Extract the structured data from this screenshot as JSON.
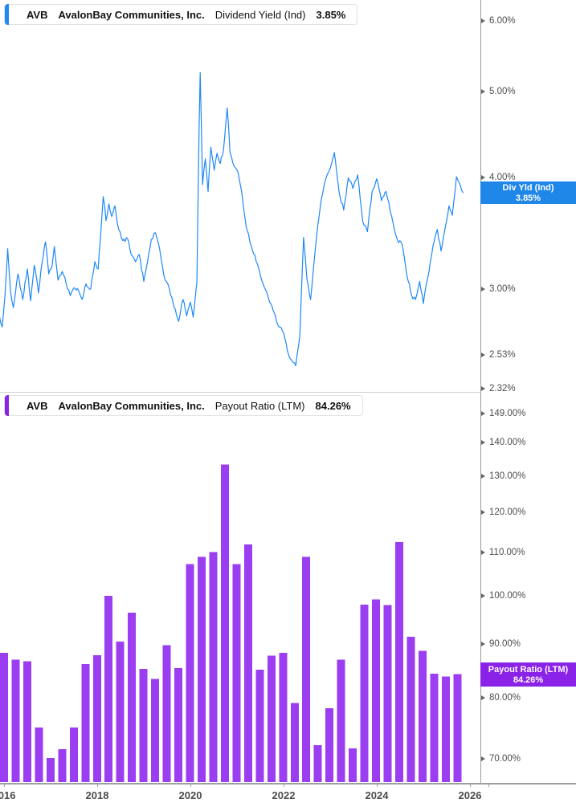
{
  "colors": {
    "line": "#1e88f7",
    "line_chip": "#1f87e8",
    "bar": "#9b3df0",
    "bar_chip": "#8b22e8",
    "accent_top": "#1e88f7",
    "accent_bottom": "#8b22e8"
  },
  "top_chart": {
    "header": {
      "ticker": "AVB",
      "company": "AvalonBay Communities, Inc.",
      "metric": "Dividend Yield (Ind)",
      "value": "3.85%"
    },
    "y_tick_labels": [
      "6.00%",
      "5.00%",
      "4.00%",
      "3.00%",
      "2.53%",
      "2.32%"
    ],
    "chip": {
      "title": "Div Yld (Ind)",
      "value": "3.85%"
    }
  },
  "bottom_chart": {
    "header": {
      "ticker": "AVB",
      "company": "AvalonBay Communities, Inc.",
      "metric": "Payout Ratio (LTM)",
      "value": "84.26%"
    },
    "y_tick_labels": [
      "149.00%",
      "140.00%",
      "130.00%",
      "120.00%",
      "110.00%",
      "100.00%",
      "90.00%",
      "80.00%",
      "70.00%"
    ],
    "chip": {
      "title": "Payout Ratio (LTM)",
      "value": "84.26%"
    }
  },
  "x_axis": {
    "labels": [
      "2016",
      "2018",
      "2020",
      "2022",
      "2024",
      "2026"
    ]
  },
  "chart_data": [
    {
      "type": "line",
      "title": "AVB AvalonBay Communities, Inc. — Dividend Yield (Ind)",
      "legend": "Div Yld (Ind)",
      "unit": "%",
      "y_scale": "log",
      "ylim": [
        2.25,
        6.3
      ],
      "y_ticks": [
        6.0,
        5.0,
        4.0,
        3.0,
        2.53,
        2.32
      ],
      "x_ticks": [
        2016,
        2018,
        2020,
        2022,
        2024,
        2026
      ],
      "last_value": 3.85,
      "series": [
        {
          "name": "Div Yld (Ind)",
          "points": [
            [
              2015.9,
              2.8
            ],
            [
              2015.96,
              2.72
            ],
            [
              2016.02,
              2.95
            ],
            [
              2016.08,
              3.33
            ],
            [
              2016.14,
              2.98
            ],
            [
              2016.2,
              2.86
            ],
            [
              2016.3,
              3.12
            ],
            [
              2016.4,
              2.92
            ],
            [
              2016.5,
              3.16
            ],
            [
              2016.57,
              2.91
            ],
            [
              2016.65,
              3.19
            ],
            [
              2016.74,
              2.97
            ],
            [
              2016.82,
              3.22
            ],
            [
              2016.89,
              3.39
            ],
            [
              2016.96,
              3.12
            ],
            [
              2017.03,
              3.18
            ],
            [
              2017.08,
              3.35
            ],
            [
              2017.16,
              3.07
            ],
            [
              2017.25,
              3.14
            ],
            [
              2017.33,
              3.05
            ],
            [
              2017.42,
              2.95
            ],
            [
              2017.5,
              3.01
            ],
            [
              2017.6,
              2.99
            ],
            [
              2017.68,
              2.92
            ],
            [
              2017.76,
              3.04
            ],
            [
              2017.86,
              3.0
            ],
            [
              2017.95,
              3.22
            ],
            [
              2018.02,
              3.16
            ],
            [
              2018.09,
              3.55
            ],
            [
              2018.13,
              3.81
            ],
            [
              2018.19,
              3.58
            ],
            [
              2018.25,
              3.74
            ],
            [
              2018.31,
              3.62
            ],
            [
              2018.38,
              3.72
            ],
            [
              2018.46,
              3.5
            ],
            [
              2018.55,
              3.4
            ],
            [
              2018.65,
              3.42
            ],
            [
              2018.73,
              3.28
            ],
            [
              2018.82,
              3.22
            ],
            [
              2018.9,
              3.28
            ],
            [
              2019.0,
              3.06
            ],
            [
              2019.08,
              3.22
            ],
            [
              2019.16,
              3.41
            ],
            [
              2019.25,
              3.47
            ],
            [
              2019.34,
              3.33
            ],
            [
              2019.43,
              3.11
            ],
            [
              2019.55,
              3.0
            ],
            [
              2019.65,
              2.86
            ],
            [
              2019.75,
              2.76
            ],
            [
              2019.84,
              2.92
            ],
            [
              2019.92,
              2.8
            ],
            [
              2020.0,
              2.9
            ],
            [
              2020.06,
              2.79
            ],
            [
              2020.14,
              3.05
            ],
            [
              2020.21,
              5.25
            ],
            [
              2020.26,
              3.93
            ],
            [
              2020.32,
              4.2
            ],
            [
              2020.38,
              3.86
            ],
            [
              2020.44,
              4.33
            ],
            [
              2020.51,
              4.08
            ],
            [
              2020.57,
              4.26
            ],
            [
              2020.64,
              4.15
            ],
            [
              2020.71,
              4.3
            ],
            [
              2020.79,
              4.79
            ],
            [
              2020.85,
              4.27
            ],
            [
              2020.94,
              4.12
            ],
            [
              2021.02,
              4.06
            ],
            [
              2021.1,
              3.86
            ],
            [
              2021.2,
              3.52
            ],
            [
              2021.3,
              3.36
            ],
            [
              2021.44,
              3.2
            ],
            [
              2021.58,
              3.02
            ],
            [
              2021.7,
              2.9
            ],
            [
              2021.8,
              2.82
            ],
            [
              2021.9,
              2.72
            ],
            [
              2022.0,
              2.68
            ],
            [
              2022.08,
              2.56
            ],
            [
              2022.16,
              2.5
            ],
            [
              2022.26,
              2.46
            ],
            [
              2022.35,
              2.66
            ],
            [
              2022.43,
              3.43
            ],
            [
              2022.5,
              3.08
            ],
            [
              2022.58,
              2.92
            ],
            [
              2022.68,
              3.32
            ],
            [
              2022.79,
              3.72
            ],
            [
              2022.89,
              3.96
            ],
            [
              2023.0,
              4.1
            ],
            [
              2023.09,
              4.27
            ],
            [
              2023.19,
              3.86
            ],
            [
              2023.29,
              3.68
            ],
            [
              2023.39,
              4.0
            ],
            [
              2023.49,
              3.89
            ],
            [
              2023.59,
              4.03
            ],
            [
              2023.7,
              3.57
            ],
            [
              2023.8,
              3.48
            ],
            [
              2023.9,
              3.86
            ],
            [
              2024.0,
              3.99
            ],
            [
              2024.1,
              3.77
            ],
            [
              2024.2,
              3.86
            ],
            [
              2024.32,
              3.62
            ],
            [
              2024.44,
              3.41
            ],
            [
              2024.55,
              3.36
            ],
            [
              2024.65,
              3.1
            ],
            [
              2024.75,
              2.95
            ],
            [
              2024.83,
              2.92
            ],
            [
              2024.92,
              3.06
            ],
            [
              2025.0,
              2.89
            ],
            [
              2025.1,
              3.1
            ],
            [
              2025.2,
              3.34
            ],
            [
              2025.3,
              3.5
            ],
            [
              2025.38,
              3.31
            ],
            [
              2025.47,
              3.52
            ],
            [
              2025.55,
              3.72
            ],
            [
              2025.62,
              3.63
            ],
            [
              2025.71,
              4.01
            ],
            [
              2025.79,
              3.93
            ],
            [
              2025.85,
              3.85
            ]
          ]
        }
      ]
    },
    {
      "type": "bar",
      "title": "AVB AvalonBay Communities, Inc. — Payout Ratio (LTM)",
      "legend": "Payout Ratio (LTM)",
      "unit": "%",
      "y_scale": "log",
      "y_ticks": [
        149,
        140,
        130,
        120,
        110,
        100,
        90,
        80,
        70
      ],
      "x_ticks": [
        2016,
        2018,
        2020,
        2022,
        2024,
        2026
      ],
      "last_value": 84.26,
      "categories": [
        "Q1 2016",
        "Q2 2016",
        "Q3 2016",
        "Q4 2016",
        "Q1 2017",
        "Q2 2017",
        "Q3 2017",
        "Q4 2017",
        "Q1 2018",
        "Q2 2018",
        "Q3 2018",
        "Q4 2018",
        "Q1 2019",
        "Q2 2019",
        "Q3 2019",
        "Q4 2019",
        "Q1 2020",
        "Q2 2020",
        "Q3 2020",
        "Q4 2020",
        "Q1 2021",
        "Q2 2021",
        "Q3 2021",
        "Q4 2021",
        "Q1 2022",
        "Q2 2022",
        "Q3 2022",
        "Q4 2022",
        "Q1 2023",
        "Q2 2023",
        "Q3 2023",
        "Q4 2023",
        "Q1 2024",
        "Q2 2024",
        "Q3 2024",
        "Q4 2024",
        "Q1 2025",
        "Q2 2025",
        "Q3 2025",
        "Q4 2025"
      ],
      "values": [
        88.3,
        87.0,
        86.7,
        75.0,
        70.1,
        71.5,
        75.0,
        86.1,
        87.8,
        100.0,
        90.5,
        96.4,
        85.2,
        83.4,
        89.8,
        85.4,
        107.2,
        108.9,
        110.1,
        133.3,
        107.2,
        111.9,
        85.1,
        87.7,
        88.3,
        79.1,
        108.9,
        72.1,
        78.2,
        87.0,
        71.6,
        98.1,
        99.2,
        98.0,
        112.5,
        91.4,
        88.7,
        84.3,
        83.8,
        84.26
      ]
    }
  ]
}
